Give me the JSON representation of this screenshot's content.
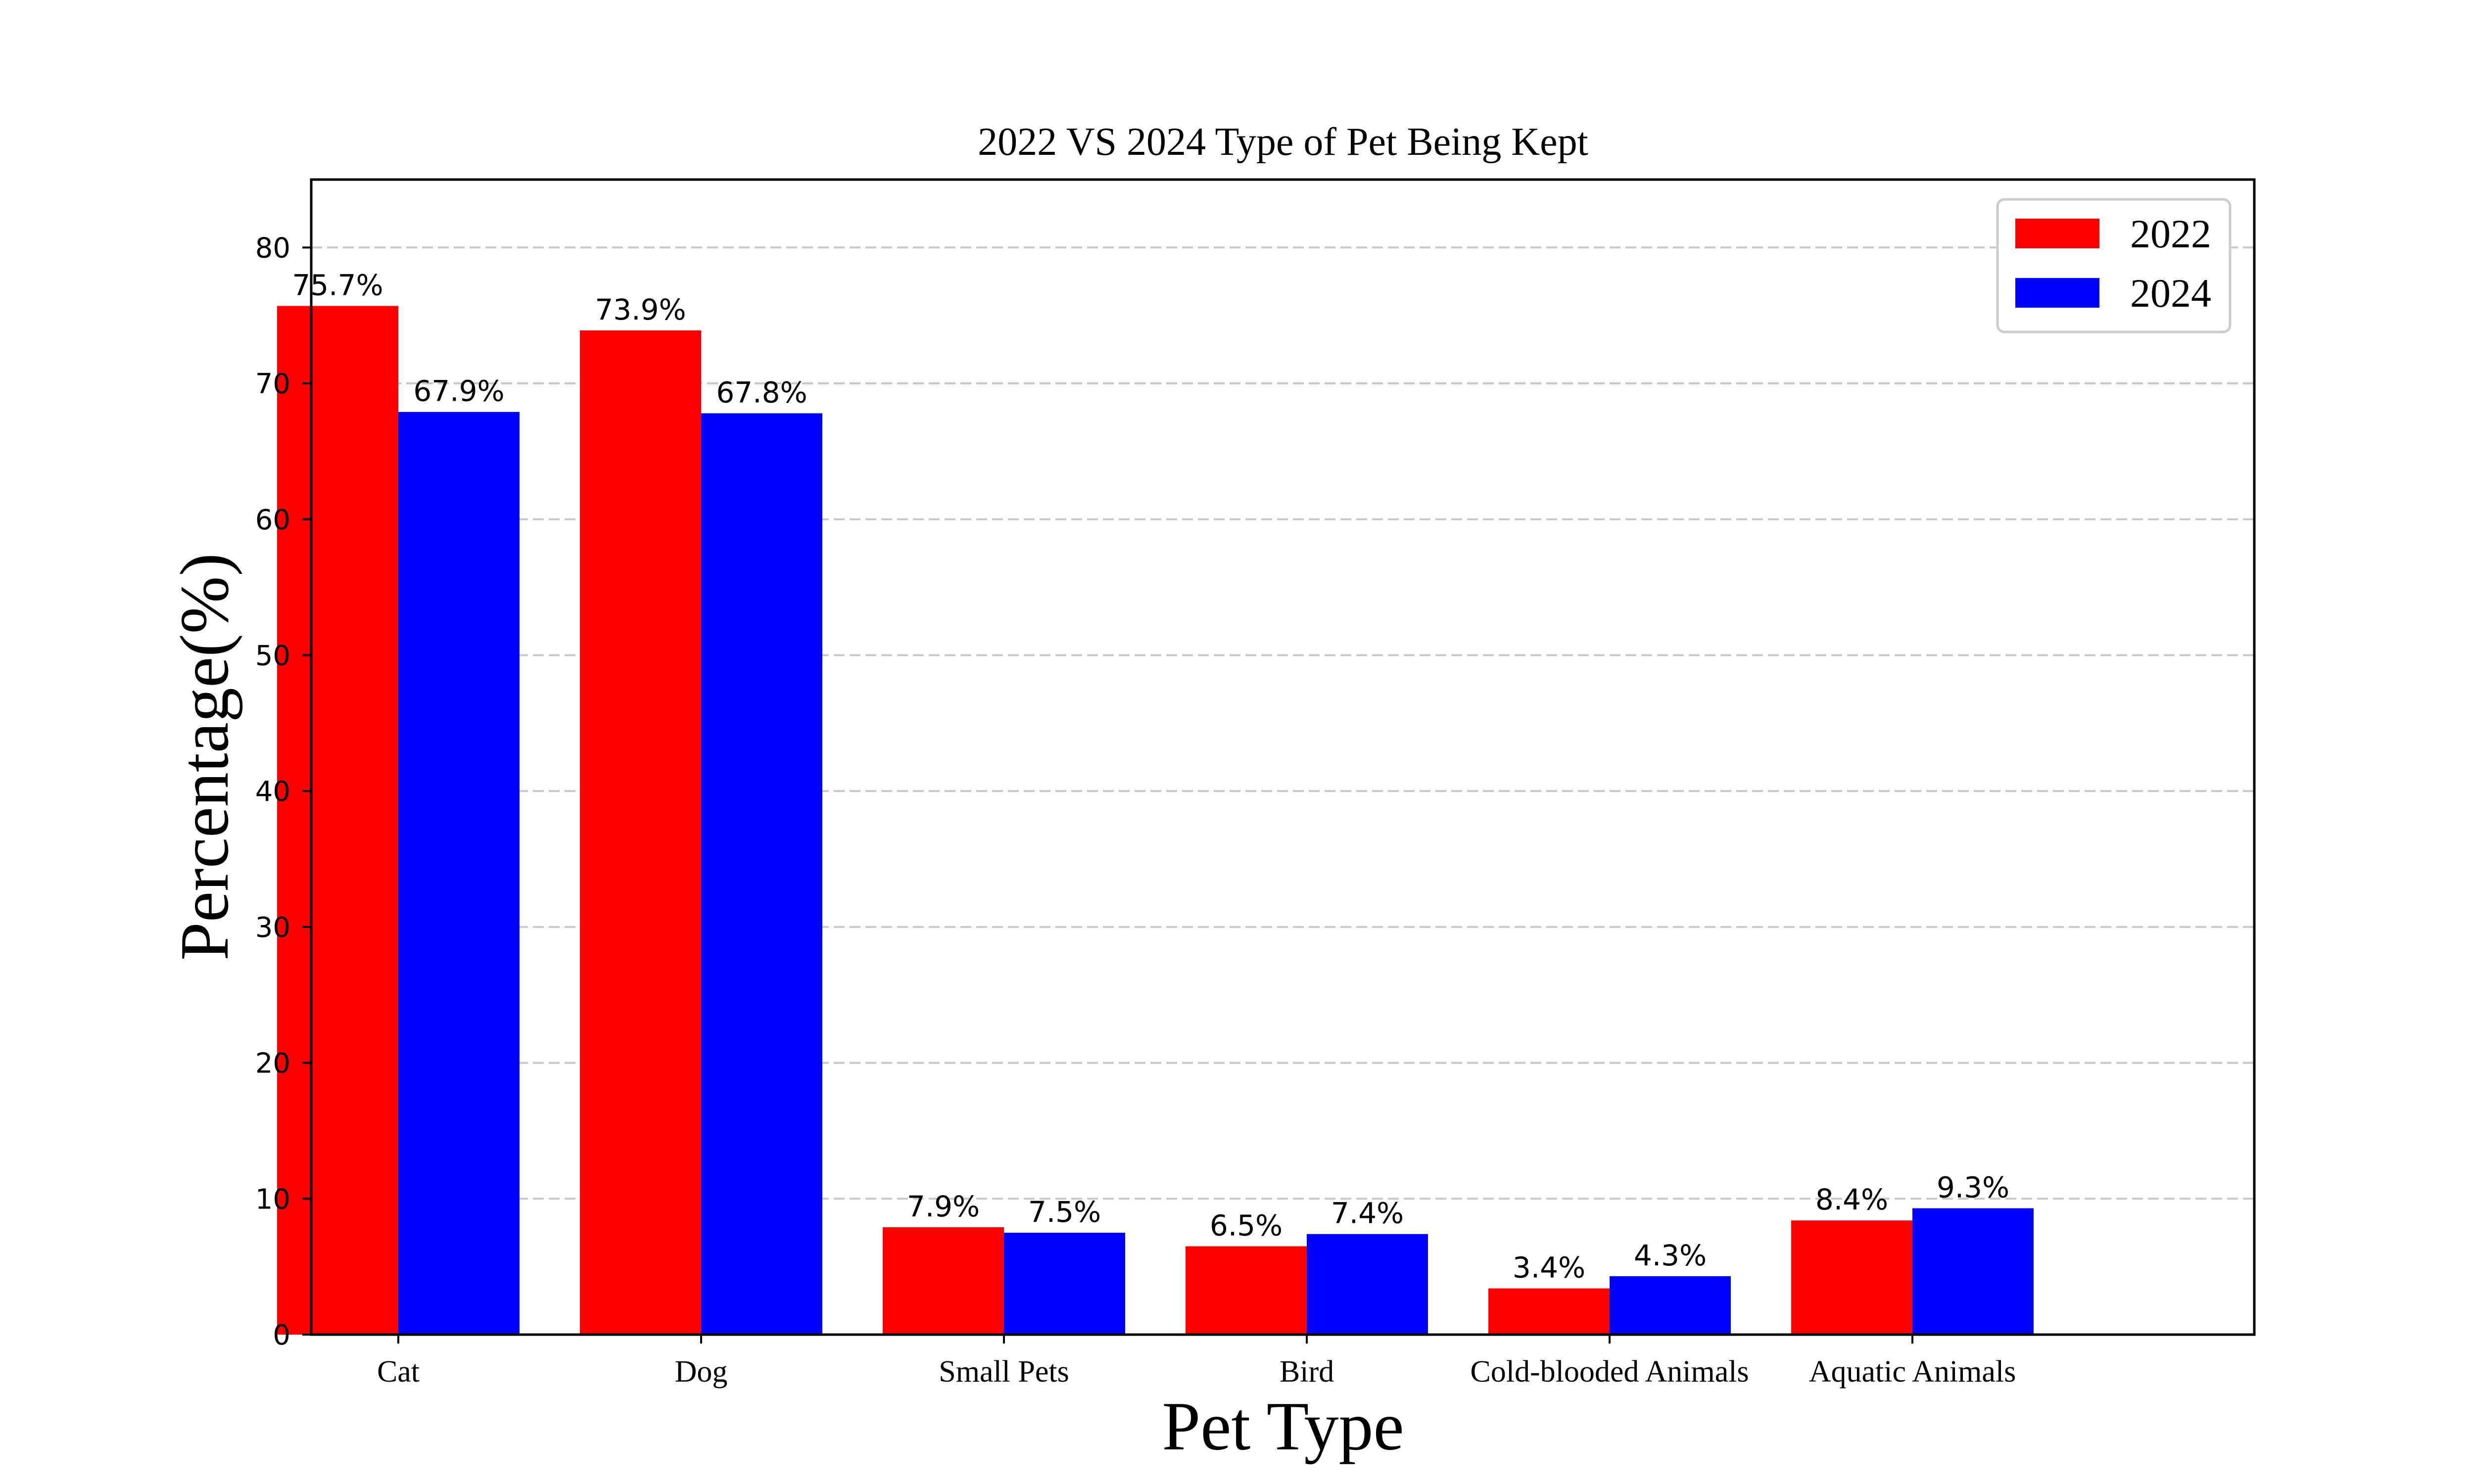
{
  "chart_data": {
    "type": "bar",
    "title": "2022 VS 2024 Type of Pet Being Kept",
    "xlabel": "Pet Type",
    "ylabel": "Percentage(%)",
    "categories": [
      "Cat",
      "Dog",
      "Small Pets",
      "Bird",
      "Cold-blooded Animals",
      "Aquatic Animals"
    ],
    "series": [
      {
        "name": "2022",
        "color": "#ff0000",
        "values": [
          75.7,
          73.9,
          7.9,
          6.5,
          3.4,
          8.4
        ],
        "labels": [
          "75.7%",
          "73.9%",
          "7.9%",
          "6.5%",
          "3.4%",
          "8.4%"
        ]
      },
      {
        "name": "2024",
        "color": "#0000ff",
        "values": [
          67.9,
          67.8,
          7.5,
          7.4,
          4.3,
          9.3
        ],
        "labels": [
          "67.9%",
          "67.8%",
          "7.5%",
          "7.4%",
          "4.3%",
          "9.3%"
        ]
      }
    ],
    "ylim": [
      0,
      85
    ],
    "yticks": [
      0,
      10,
      20,
      30,
      40,
      50,
      60,
      70,
      80
    ],
    "ytick_labels": [
      "0",
      "10",
      "20",
      "30",
      "40",
      "50",
      "60",
      "70",
      "80"
    ],
    "grid": "y-dashed",
    "legend_position": "top-right"
  }
}
